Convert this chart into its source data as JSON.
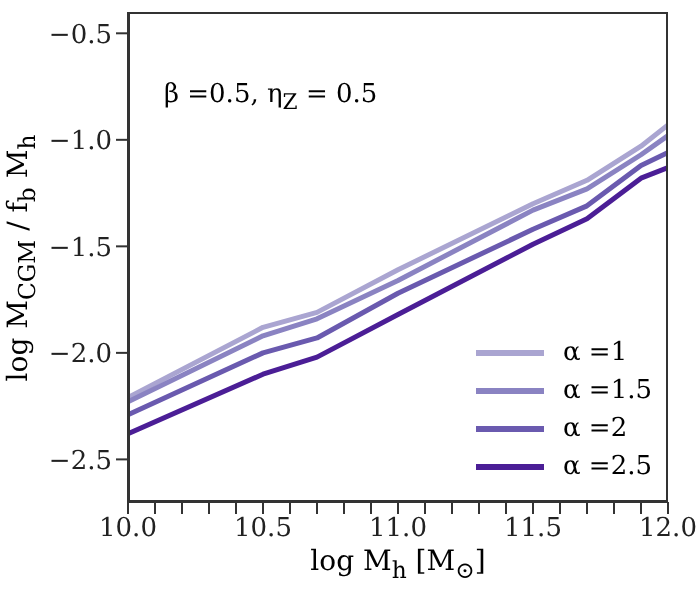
{
  "chart_data": {
    "type": "line",
    "xlabel": "log M$_{h}$ [M$_{⊙}$]",
    "ylabel": "log M$_{CGM}$ / f$_{b}$ M$_{h}$",
    "annotations": [
      "β =0.5, η$_{Z}$ = 0.5"
    ],
    "x": [
      10,
      10.5,
      10.7,
      11,
      11.5,
      11.7,
      11.9,
      12
    ],
    "series": [
      {
        "name": "α =1",
        "color": "#aaa5d1",
        "values": [
          -2.21,
          -1.88,
          -1.81,
          -1.61,
          -1.3,
          -1.19,
          -1.03,
          -0.93
        ]
      },
      {
        "name": "α =1.5",
        "color": "#8a83c2",
        "values": [
          -2.23,
          -1.92,
          -1.84,
          -1.66,
          -1.33,
          -1.23,
          -1.07,
          -0.98
        ]
      },
      {
        "name": "α =2",
        "color": "#6a5aaf",
        "values": [
          -2.29,
          -2.0,
          -1.93,
          -1.72,
          -1.42,
          -1.31,
          -1.12,
          -1.06
        ]
      },
      {
        "name": "α =2.5",
        "color": "#4b1e96",
        "values": [
          -2.38,
          -2.1,
          -2.02,
          -1.82,
          -1.49,
          -1.37,
          -1.18,
          -1.13
        ]
      }
    ],
    "xlim": [
      10,
      12
    ],
    "ylim": [
      -2.7,
      -0.4
    ],
    "xticks": [
      {
        "value": 10,
        "label": "10.0"
      },
      {
        "value": 10.1,
        "label": null
      },
      {
        "value": 10.2,
        "label": null
      },
      {
        "value": 10.3,
        "label": null
      },
      {
        "value": 10.4,
        "label": null
      },
      {
        "value": 10.5,
        "label": "10.5"
      },
      {
        "value": 10.6,
        "label": null
      },
      {
        "value": 10.7,
        "label": null
      },
      {
        "value": 10.8,
        "label": null
      },
      {
        "value": 10.9,
        "label": null
      },
      {
        "value": 11,
        "label": "11.0"
      },
      {
        "value": 11.1,
        "label": null
      },
      {
        "value": 11.2,
        "label": null
      },
      {
        "value": 11.3,
        "label": null
      },
      {
        "value": 11.4,
        "label": null
      },
      {
        "value": 11.5,
        "label": "11.5"
      },
      {
        "value": 11.6,
        "label": null
      },
      {
        "value": 11.7,
        "label": null
      },
      {
        "value": 11.8,
        "label": null
      },
      {
        "value": 11.9,
        "label": null
      },
      {
        "value": 12,
        "label": "12.0"
      }
    ],
    "yticks": [
      {
        "value": -2.5,
        "label": "−2.5"
      },
      {
        "value": -2.0,
        "label": "−2.0"
      },
      {
        "value": -1.5,
        "label": "−1.5"
      },
      {
        "value": -1.0,
        "label": "−1.0"
      },
      {
        "value": -0.5,
        "label": "−0.5"
      }
    ],
    "legend": "bottom right",
    "marker": "none",
    "line_style": "solid"
  }
}
